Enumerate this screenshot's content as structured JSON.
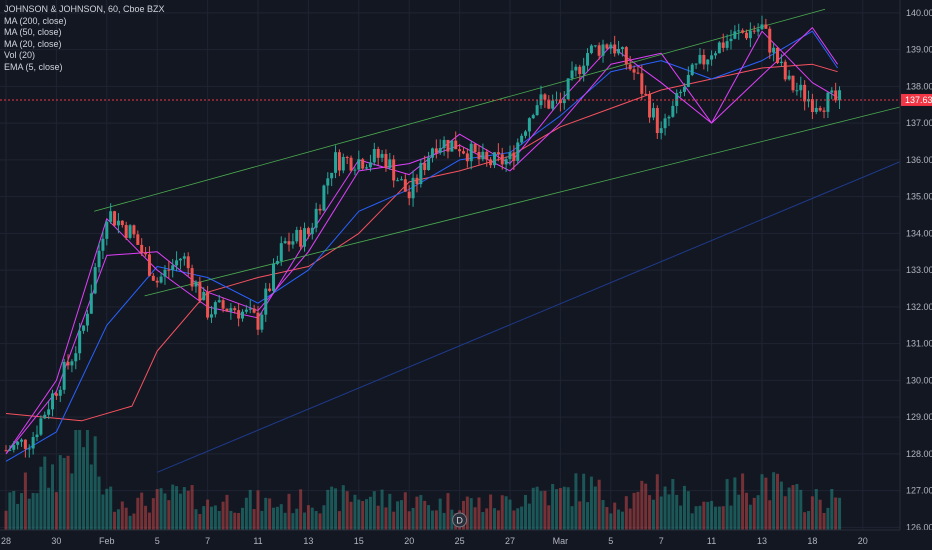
{
  "chart_data": {
    "type": "candlestick",
    "title": "JOHNSON & JOHNSON, 60, Cboe BZX",
    "legend_items": [
      "MA (200, close)",
      "MA (50, close)",
      "MA (20, close)",
      "Vol (20)",
      "EMA (5, close)"
    ],
    "last_price": "137.63",
    "y_ticks": [
      140.0,
      139.0,
      138.0,
      137.0,
      136.0,
      135.0,
      134.0,
      133.0,
      132.0,
      131.0,
      130.0,
      129.0,
      128.0,
      127.0,
      126.0
    ],
    "ylim": [
      125.93,
      140.35
    ],
    "x_ticks": [
      "28",
      "30",
      "Feb",
      "5",
      "7",
      "11",
      "13",
      "15",
      "20",
      "25",
      "27",
      "Mar",
      "5",
      "7",
      "11",
      "13",
      "18",
      "20"
    ],
    "x_tick_sessions": [
      0,
      2,
      4,
      6,
      8,
      10,
      12,
      14,
      16,
      18,
      20,
      22,
      24,
      26,
      28,
      30,
      32,
      34
    ],
    "session_count": 35,
    "ohlc_anchors": [
      [
        0,
        128.1
      ],
      [
        1,
        128.4
      ],
      [
        2,
        129.8
      ],
      [
        3,
        131.2
      ],
      [
        4,
        134.6
      ],
      [
        5,
        134.0
      ],
      [
        6,
        132.7
      ],
      [
        7,
        133.4
      ],
      [
        8,
        131.9
      ],
      [
        9,
        132.0
      ],
      [
        10,
        131.6
      ],
      [
        11,
        133.7
      ],
      [
        12,
        134.0
      ],
      [
        13,
        136.0
      ],
      [
        14,
        136.0
      ],
      [
        15,
        136.1
      ],
      [
        16,
        135.0
      ],
      [
        17,
        136.5
      ],
      [
        18,
        136.4
      ],
      [
        19,
        135.9
      ],
      [
        20,
        136.0
      ],
      [
        21,
        137.6
      ],
      [
        22,
        137.5
      ],
      [
        23,
        138.9
      ],
      [
        24,
        139.2
      ],
      [
        25,
        138.3
      ],
      [
        26,
        136.7
      ],
      [
        27,
        138.1
      ],
      [
        28,
        139.0
      ],
      [
        29,
        139.4
      ],
      [
        30,
        139.6
      ],
      [
        31,
        138.1
      ],
      [
        32,
        137.6
      ],
      [
        33,
        137.6
      ]
    ],
    "volume_anchors": [
      [
        0,
        0.25
      ],
      [
        1,
        0.45
      ],
      [
        2,
        0.6
      ],
      [
        3,
        1.0
      ],
      [
        4,
        0.35
      ],
      [
        5,
        0.25
      ],
      [
        6,
        0.3
      ],
      [
        7,
        0.35
      ],
      [
        8,
        0.25
      ],
      [
        9,
        0.3
      ],
      [
        10,
        0.28
      ],
      [
        11,
        0.25
      ],
      [
        12,
        0.3
      ],
      [
        13,
        0.3
      ],
      [
        14,
        0.35
      ],
      [
        15,
        0.3
      ],
      [
        16,
        0.3
      ],
      [
        17,
        0.25
      ],
      [
        18,
        0.3
      ],
      [
        19,
        0.25
      ],
      [
        20,
        0.28
      ],
      [
        21,
        0.4
      ],
      [
        22,
        0.35
      ],
      [
        23,
        0.45
      ],
      [
        24,
        0.3
      ],
      [
        25,
        0.3
      ],
      [
        26,
        0.5
      ],
      [
        27,
        0.3
      ],
      [
        28,
        0.28
      ],
      [
        29,
        0.4
      ],
      [
        30,
        0.5
      ],
      [
        31,
        0.35
      ],
      [
        32,
        0.3
      ]
    ],
    "ma200_points": [
      [
        0,
        129.1
      ],
      [
        3,
        128.9
      ],
      [
        5,
        129.3
      ],
      [
        6,
        130.8
      ],
      [
        8,
        132.4
      ],
      [
        10,
        132.8
      ],
      [
        12,
        133.1
      ],
      [
        14,
        134.0
      ],
      [
        16,
        135.4
      ],
      [
        18,
        135.7
      ],
      [
        20,
        136.1
      ],
      [
        22,
        136.9
      ],
      [
        24,
        137.4
      ],
      [
        26,
        137.9
      ],
      [
        28,
        138.2
      ],
      [
        30,
        138.5
      ],
      [
        32,
        138.6
      ],
      [
        33,
        138.4
      ]
    ],
    "ma50_points": [
      [
        0,
        127.8
      ],
      [
        2,
        128.6
      ],
      [
        4,
        131.5
      ],
      [
        6,
        133.1
      ],
      [
        8,
        132.8
      ],
      [
        10,
        132.1
      ],
      [
        12,
        133.0
      ],
      [
        14,
        134.6
      ],
      [
        16,
        135.2
      ],
      [
        18,
        136.0
      ],
      [
        20,
        136.2
      ],
      [
        22,
        137.2
      ],
      [
        24,
        138.4
      ],
      [
        26,
        138.7
      ],
      [
        28,
        138.2
      ],
      [
        30,
        138.7
      ],
      [
        32,
        139.5
      ],
      [
        33,
        138.5
      ]
    ],
    "ma20_points": [
      [
        0,
        128.0
      ],
      [
        2,
        129.7
      ],
      [
        4,
        133.4
      ],
      [
        6,
        133.5
      ],
      [
        8,
        132.4
      ],
      [
        10,
        131.9
      ],
      [
        12,
        133.5
      ],
      [
        14,
        135.7
      ],
      [
        16,
        135.9
      ],
      [
        18,
        136.4
      ],
      [
        20,
        135.7
      ],
      [
        22,
        137.0
      ],
      [
        24,
        138.6
      ],
      [
        26,
        138.9
      ],
      [
        28,
        137.0
      ],
      [
        30,
        138.3
      ],
      [
        32,
        139.6
      ],
      [
        33,
        138.6
      ]
    ],
    "ema5_points": [
      [
        0,
        128.0
      ],
      [
        2,
        130.0
      ],
      [
        4,
        134.4
      ],
      [
        6,
        133.0
      ],
      [
        8,
        132.0
      ],
      [
        10,
        131.7
      ],
      [
        12,
        133.9
      ],
      [
        14,
        136.0
      ],
      [
        16,
        135.6
      ],
      [
        18,
        136.7
      ],
      [
        20,
        135.9
      ],
      [
        22,
        137.6
      ],
      [
        24,
        139.1
      ],
      [
        26,
        138.1
      ],
      [
        28,
        137.0
      ],
      [
        30,
        139.5
      ],
      [
        32,
        138.1
      ],
      [
        33,
        137.7
      ]
    ],
    "channel_upper": [
      [
        3.5,
        134.6
      ],
      [
        32.5,
        140.1
      ]
    ],
    "channel_lower": [
      [
        5.5,
        132.3
      ],
      [
        37,
        137.7
      ]
    ],
    "long_trendline": [
      [
        6,
        127.5
      ],
      [
        36,
        136.1
      ]
    ],
    "event_marker": "D",
    "event_session": 18,
    "colors": {
      "background": "#131722",
      "up": "#26a69a",
      "down": "#ef5350",
      "ma200": "#f7525f",
      "ma50": "#2962ff",
      "ma20": "#e040fb",
      "channel": "#4caf50",
      "trendline": "#1e3a8a",
      "last_price": "#f23645",
      "grid": "#1f2433",
      "axis_text": "#b2b5be"
    }
  }
}
